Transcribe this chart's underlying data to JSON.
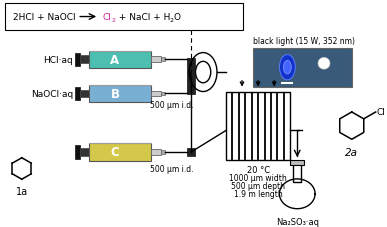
{
  "bg_color": "#ffffff",
  "syringe_A_color": "#4dbfb0",
  "syringe_B_color": "#7aafd4",
  "syringe_C_color": "#d4c84a",
  "hcl_label": "HCl·aq",
  "naocl_label": "NaOCl·aq",
  "cyclohexane_label": "1a",
  "tube_label_1": "500 μm i.d.",
  "tube_label_2": "500 μm i.d.",
  "black_light_label": "black light (15 W, 352 nm)",
  "temp_label": "20 °C",
  "dim_line1": "1000 μm width",
  "dim_line2": "500 μm depth",
  "dim_line3": "1.9 m length",
  "product_label": "2a",
  "solution_label": "Na₂SO₃·aq",
  "cl2_color": "#cc2299",
  "product_cl": "Cl"
}
